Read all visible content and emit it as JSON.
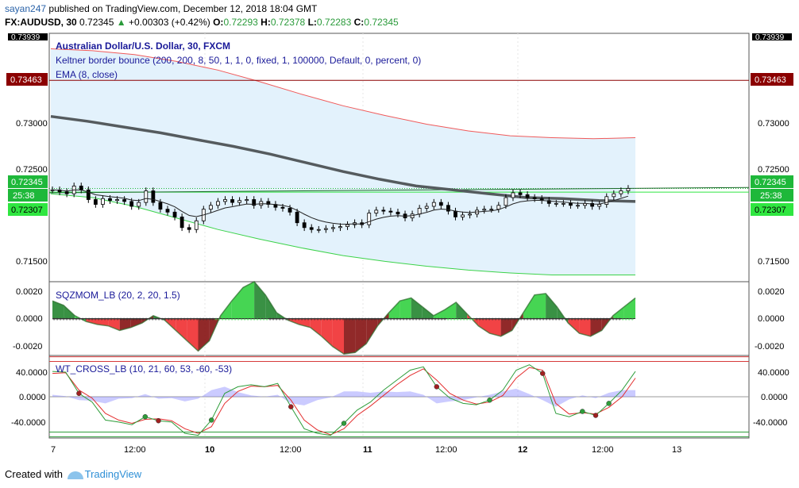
{
  "header": {
    "user": "sayan247",
    "published_text": "published on TradingView.com, December 12, 2018 18:04 GMT",
    "symbol": "FX:AUDUSD, 30",
    "last": "0.72345",
    "change_arrow": "▲",
    "change": "+0.00303 (+0.42%)",
    "open_label": "O:",
    "open": "0.72293",
    "high_label": "H:",
    "high": "0.72378",
    "low_label": "L:",
    "low": "0.72283",
    "close_label": "C:",
    "close": "0.72345"
  },
  "legend": {
    "title": "Australian Dollar/U.S. Dollar, 30, FXCM",
    "line2": "Keltner border bounce (200, 200, 8, 50, 1, 1, 0, fixed, 1, 100000, Default, 0, percent, 0)",
    "line3": "EMA (8, close)",
    "sqz": "SQZMOM_LB (20, 2, 20, 1.5)",
    "wt": "WT_CROSS_LB (10, 21, 60, 53, -60, -53)"
  },
  "axis": {
    "price_ticks": [
      "0.73000",
      "0.72500",
      "0.71500"
    ],
    "top_cut": "0.73939",
    "sqz_ticks": [
      "0.0020",
      "0.0000",
      "-0.0020"
    ],
    "wt_ticks": [
      "40.0000",
      "0.0000",
      "-40.0000"
    ],
    "x_ticks": [
      "7",
      "12:00",
      "10",
      "12:00",
      "11",
      "12:00",
      "12",
      "12:00",
      "13"
    ]
  },
  "badges": {
    "left_red": "0.73463",
    "right_red": "0.73463",
    "left_price": "0.72345",
    "left_time": "25:38",
    "left_green": "0.72307",
    "right_price": "0.72345",
    "right_time": "25:38",
    "right_green": "0.72307"
  },
  "colors": {
    "upper_band": "#f05a5a",
    "lower_band": "#3cd34a",
    "band_fill": "#e3f2fc",
    "ema200": "#555b5e",
    "ema8": "#222222",
    "price_badge": "#1eb83a",
    "red_line": "#8b0000",
    "sqz_pos": "#3cd34a",
    "sqz_neg": "#f0393b",
    "wt1": "#2e9d3a",
    "wt2": "#e32d2d",
    "wt_hist": "#8c8cff"
  },
  "footer": {
    "prefix": "Created with",
    "brand": "TradingView"
  },
  "chart_data": [
    {
      "type": "candlestick",
      "title": "Australian Dollar/U.S. Dollar, 30, FXCM",
      "x_ticks": [
        "7",
        "12:00",
        "10",
        "12:00",
        "11",
        "12:00",
        "12",
        "12:00",
        "13"
      ],
      "ylim": [
        0.7138,
        0.7395
      ],
      "y_ticks": [
        0.73,
        0.725,
        0.715
      ],
      "last_price": 0.72345,
      "horizontal_line": 0.73463,
      "support_line": 0.72307,
      "close_path": [
        0.7233,
        0.7231,
        0.7229,
        0.7237,
        0.7233,
        0.7223,
        0.7218,
        0.7224,
        0.7222,
        0.7223,
        0.7221,
        0.7216,
        0.722,
        0.7232,
        0.722,
        0.7213,
        0.721,
        0.7205,
        0.7194,
        0.7192,
        0.7201,
        0.7213,
        0.7217,
        0.7221,
        0.7223,
        0.722,
        0.7222,
        0.7223,
        0.7217,
        0.7221,
        0.7218,
        0.7215,
        0.7214,
        0.721,
        0.7199,
        0.7194,
        0.7192,
        0.7192,
        0.7193,
        0.7194,
        0.7195,
        0.7197,
        0.7199,
        0.7197,
        0.7209,
        0.7212,
        0.7211,
        0.721,
        0.7208,
        0.7204,
        0.7208,
        0.7214,
        0.7216,
        0.722,
        0.7217,
        0.7211,
        0.7205,
        0.7207,
        0.7208,
        0.7212,
        0.7213,
        0.7213,
        0.7217,
        0.7225,
        0.723,
        0.7228,
        0.7225,
        0.7224,
        0.7222,
        0.7219,
        0.7219,
        0.7219,
        0.7217,
        0.7217,
        0.7219,
        0.7216,
        0.7218,
        0.7226,
        0.7229,
        0.7232,
        0.72345
      ],
      "upper_band": [
        0.7379,
        0.7377,
        0.7373,
        0.7366,
        0.7357,
        0.7345,
        0.7332,
        0.732,
        0.731,
        0.7301,
        0.7294,
        0.7289,
        0.7287,
        0.7286,
        0.7287
      ],
      "lower_band": [
        0.7229,
        0.7225,
        0.7216,
        0.7204,
        0.7192,
        0.7182,
        0.7173,
        0.7165,
        0.7159,
        0.7154,
        0.715,
        0.7147,
        0.7145,
        0.7145,
        0.7145
      ],
      "ema200": [
        0.7309,
        0.7304,
        0.7298,
        0.7292,
        0.7285,
        0.7278,
        0.727,
        0.7261,
        0.7252,
        0.7244,
        0.7237,
        0.7233,
        0.7229,
        0.7225,
        0.7224,
        0.7222,
        0.7221
      ]
    },
    {
      "type": "area",
      "title": "SQZMOM_LB (20, 2, 20, 1.5)",
      "ylim": [
        -0.0025,
        0.0025
      ],
      "y_ticks": [
        0.002,
        0,
        -0.002
      ],
      "values": [
        0.0012,
        0.0009,
        0.0002,
        -0.0002,
        -0.0004,
        -0.0005,
        -0.0008,
        -0.0006,
        -0.0003,
        0.0002,
        -0.0001,
        -0.0008,
        -0.0015,
        -0.0022,
        -0.0015,
        0.0002,
        0.0012,
        0.0021,
        0.0025,
        0.0016,
        0.0004,
        -0.0001,
        -0.0004,
        -0.0006,
        -0.0012,
        -0.0019,
        -0.0024,
        -0.0023,
        -0.0017,
        -0.0005,
        0.0004,
        0.0012,
        0.0014,
        0.0008,
        0.0002,
        0.0006,
        0.0011,
        0.0003,
        -0.0005,
        -0.001,
        -0.0012,
        -0.0008,
        0.0004,
        0.0016,
        0.0017,
        0.0008,
        -0.0003,
        -0.001,
        -0.0012,
        -0.0008,
        0.0002,
        0.0008,
        0.0014
      ]
    },
    {
      "type": "line",
      "title": "WT_CROSS_LB (10, 21, 60, 53, -60, -53)",
      "ylim": [
        -62,
        62
      ],
      "y_ticks": [
        40,
        0,
        -40
      ],
      "reference_lines": [
        60,
        53,
        -53,
        -60
      ],
      "series": [
        {
          "name": "wt1",
          "values": [
            38,
            37,
            5,
            -8,
            -35,
            -38,
            -42,
            -30,
            -36,
            -38,
            -55,
            -58,
            -35,
            5,
            15,
            18,
            15,
            20,
            -15,
            -48,
            -55,
            -58,
            -40,
            -20,
            -8,
            10,
            25,
            40,
            45,
            15,
            -2,
            -10,
            -12,
            -5,
            10,
            40,
            48,
            35,
            -25,
            -30,
            -22,
            -28,
            -10,
            10,
            38
          ]
        },
        {
          "name": "wt2",
          "values": [
            35,
            36,
            10,
            -2,
            -25,
            -35,
            -40,
            -34,
            -33,
            -36,
            -48,
            -55,
            -45,
            -10,
            8,
            16,
            15,
            17,
            -5,
            -35,
            -50,
            -57,
            -48,
            -28,
            -14,
            2,
            18,
            32,
            42,
            25,
            5,
            -5,
            -11,
            -8,
            2,
            28,
            44,
            40,
            -10,
            -26,
            -24,
            -26,
            -16,
            0,
            28
          ]
        },
        {
          "name": "hist",
          "values": [
            3,
            1,
            -5,
            -6,
            -10,
            -3,
            -2,
            4,
            -3,
            -2,
            -7,
            -3,
            10,
            15,
            7,
            2,
            0,
            3,
            -10,
            -13,
            -5,
            -1,
            8,
            8,
            6,
            8,
            7,
            8,
            3,
            -10,
            -7,
            -5,
            -1,
            3,
            8,
            12,
            4,
            -5,
            -15,
            -4,
            2,
            -2,
            6,
            10,
            10
          ]
        }
      ]
    }
  ]
}
